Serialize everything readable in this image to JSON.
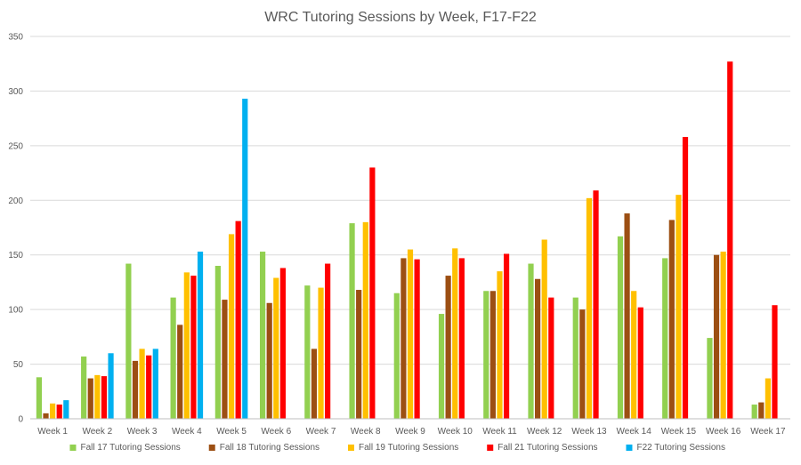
{
  "chart_data": {
    "type": "bar",
    "title": "WRC Tutoring Sessions by Week, F17-F22",
    "xlabel": "",
    "ylabel": "",
    "ylim": [
      0,
      350
    ],
    "yticks": [
      0,
      50,
      100,
      150,
      200,
      250,
      300,
      350
    ],
    "grid": true,
    "legend_position": "bottom",
    "categories": [
      "Week 1",
      "Week 2",
      "Week 3",
      "Week 4",
      "Week 5",
      "Week 6",
      "Week 7",
      "Week 8",
      "Week 9",
      "Week 10",
      "Week 11",
      "Week 12",
      "Week 13",
      "Week 14",
      "Week 15",
      "Week 16",
      "Week 17"
    ],
    "series": [
      {
        "name": "Fall 17 Tutoring Sessions",
        "color": "#92d050",
        "values": [
          38,
          57,
          142,
          111,
          140,
          153,
          122,
          179,
          115,
          96,
          117,
          142,
          111,
          167,
          147,
          74,
          13
        ]
      },
      {
        "name": "Fall 18 Tutoring Sessions",
        "color": "#9c4f13",
        "values": [
          5,
          37,
          53,
          86,
          109,
          106,
          64,
          118,
          147,
          131,
          117,
          128,
          100,
          188,
          182,
          150,
          15
        ]
      },
      {
        "name": "Fall 19 Tutoring Sessions",
        "color": "#ffc000",
        "values": [
          14,
          40,
          64,
          134,
          169,
          129,
          120,
          180,
          155,
          156,
          135,
          164,
          202,
          117,
          205,
          153,
          37
        ]
      },
      {
        "name": "Fall 21 Tutoring Sessions",
        "color": "#ff0000",
        "values": [
          13,
          39,
          58,
          131,
          181,
          138,
          142,
          230,
          146,
          147,
          151,
          111,
          209,
          102,
          258,
          327,
          104
        ]
      },
      {
        "name": "F22 Tutoring Sessions",
        "color": "#00b0f0",
        "values": [
          17,
          60,
          64,
          153,
          293,
          null,
          null,
          null,
          null,
          null,
          null,
          null,
          null,
          null,
          null,
          null,
          null
        ]
      }
    ]
  }
}
